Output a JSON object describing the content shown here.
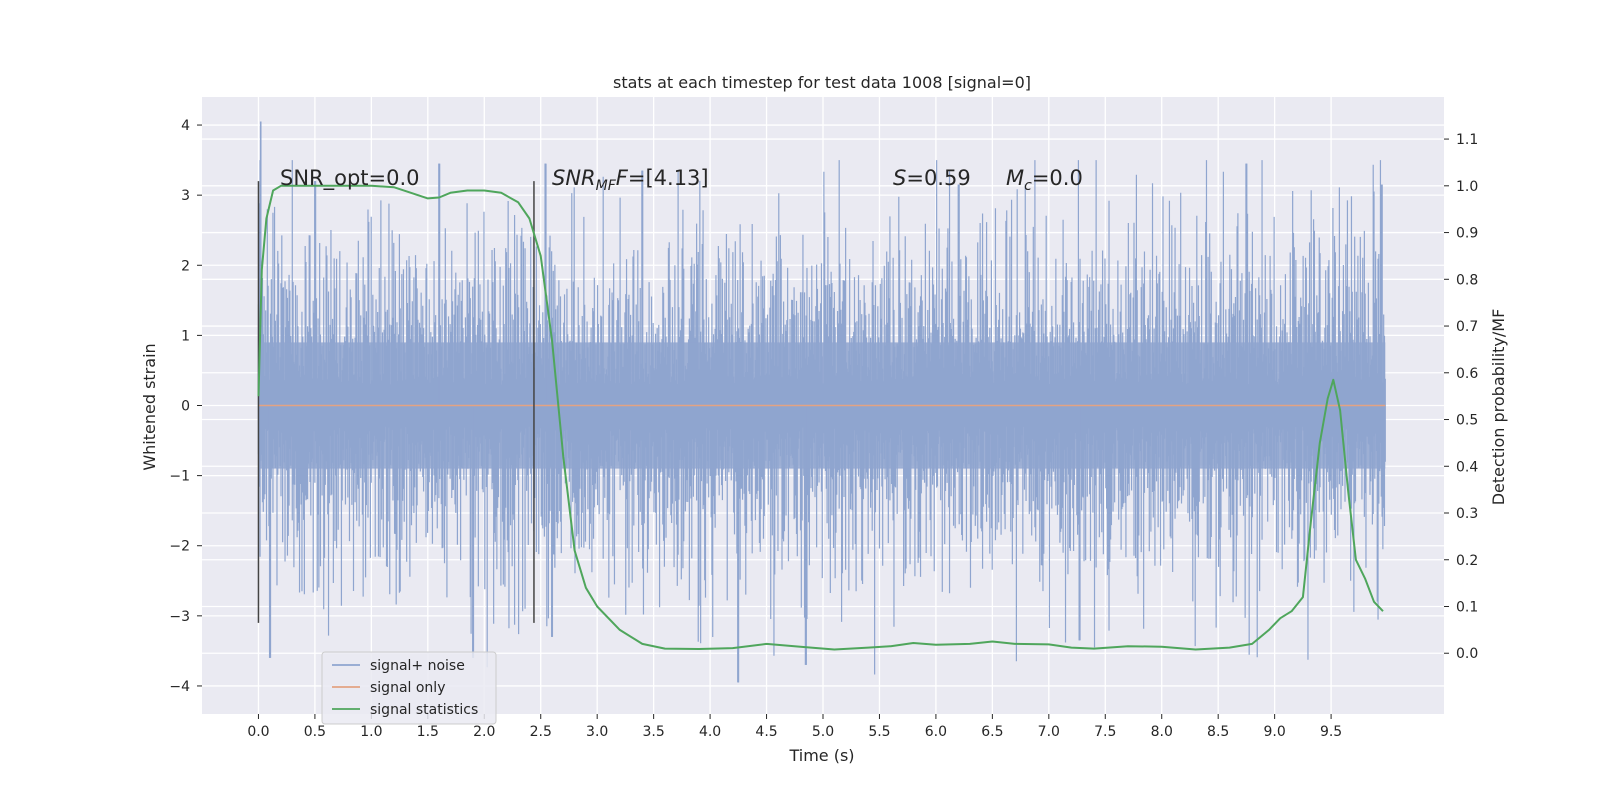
{
  "chart_data": {
    "type": "line",
    "title": "stats at each timestep for test data 1008 [signal=0]",
    "xlabel": "Time (s)",
    "ylabel_left": "Whitened strain",
    "ylabel_right": "Detection probability/MF",
    "xlim": [
      -0.5,
      10.5
    ],
    "ylim_left": [
      -4.4,
      4.4
    ],
    "ylim_right": [
      -0.13,
      1.19
    ],
    "x_ticks": [
      "0.0",
      "0.5",
      "1.0",
      "1.5",
      "2.0",
      "2.5",
      "3.0",
      "3.5",
      "4.0",
      "4.5",
      "5.0",
      "5.5",
      "6.0",
      "6.5",
      "7.0",
      "7.5",
      "8.0",
      "8.5",
      "9.0",
      "9.5"
    ],
    "y_ticks_left": [
      "4",
      "3",
      "2",
      "1",
      "0",
      "−1",
      "−2",
      "−3",
      "−4"
    ],
    "y_ticks_right": [
      "1.1",
      "1.0",
      "0.9",
      "0.8",
      "0.7",
      "0.6",
      "0.5",
      "0.4",
      "0.3",
      "0.2",
      "0.1",
      "0.0"
    ],
    "grid": true,
    "legend_position": "lower-left",
    "colors": {
      "noise": "#8fa5cf",
      "signal": "#e3a383",
      "stats": "#4fa65c",
      "vline": "#444444",
      "plot_bg": "#eaeaf2",
      "grid": "#ffffff"
    },
    "annotations": {
      "snr_opt": "SNR_opt=0.0",
      "snr_mf_name": "SNR",
      "snr_mf_sub": "MF",
      "snr_mf_value": "=[4.13]",
      "s_name": "S",
      "s_value": "=0.59",
      "mc_name": "M",
      "mc_sub": "c",
      "mc_value": "=0.0"
    },
    "vertical_lines": [
      {
        "x": 0.0,
        "y_range": [
          -3.1,
          3.2
        ]
      },
      {
        "x": 2.44,
        "y_range": [
          -3.1,
          3.2
        ]
      }
    ],
    "noise_series": {
      "name": "signal+ noise",
      "x_range": [
        0.0,
        9.98
      ],
      "typical_amplitude": 1.3,
      "peaks": [
        {
          "x": 0.02,
          "y": 4.05
        },
        {
          "x": 0.5,
          "y": 3.2
        },
        {
          "x": 1.6,
          "y": 3.45
        },
        {
          "x": 2.54,
          "y": 3.45
        },
        {
          "x": 3.4,
          "y": 3.35
        },
        {
          "x": 6.2,
          "y": 3.15
        },
        {
          "x": 8.75,
          "y": 3.45
        },
        {
          "x": 9.95,
          "y": 3.15
        },
        {
          "x": 0.1,
          "y": -3.6
        },
        {
          "x": 1.9,
          "y": -3.6
        },
        {
          "x": 4.25,
          "y": -3.95
        },
        {
          "x": 4.85,
          "y": -3.7
        },
        {
          "x": 7.27,
          "y": -3.35
        },
        {
          "x": 2.6,
          "y": -3.3
        }
      ]
    },
    "signal_series": {
      "name": "signal only",
      "x": [
        0.0,
        9.98
      ],
      "y": [
        0.0,
        0.0
      ]
    },
    "stats_series": {
      "name": "signal statistics",
      "x": [
        0.0,
        0.03,
        0.07,
        0.13,
        0.2,
        0.3,
        0.5,
        0.8,
        1.0,
        1.2,
        1.35,
        1.5,
        1.6,
        1.7,
        1.85,
        2.0,
        2.15,
        2.3,
        2.4,
        2.5,
        2.6,
        2.7,
        2.8,
        2.9,
        3.0,
        3.2,
        3.4,
        3.6,
        3.9,
        4.2,
        4.5,
        4.8,
        5.1,
        5.4,
        5.6,
        5.8,
        6.0,
        6.3,
        6.5,
        6.7,
        7.0,
        7.2,
        7.4,
        7.7,
        8.0,
        8.3,
        8.6,
        8.8,
        8.95,
        9.05,
        9.15,
        9.25,
        9.32,
        9.4,
        9.47,
        9.52,
        9.58,
        9.65,
        9.72,
        9.8,
        9.88,
        9.96
      ],
      "y": [
        0.55,
        0.82,
        0.93,
        0.99,
        1.0,
        1.0,
        1.0,
        1.0,
        1.0,
        0.997,
        0.985,
        0.973,
        0.975,
        0.985,
        0.99,
        0.99,
        0.985,
        0.965,
        0.93,
        0.85,
        0.67,
        0.42,
        0.22,
        0.14,
        0.1,
        0.05,
        0.02,
        0.01,
        0.009,
        0.011,
        0.02,
        0.014,
        0.008,
        0.012,
        0.015,
        0.022,
        0.018,
        0.02,
        0.025,
        0.02,
        0.019,
        0.012,
        0.01,
        0.015,
        0.014,
        0.008,
        0.012,
        0.02,
        0.05,
        0.075,
        0.09,
        0.12,
        0.28,
        0.45,
        0.545,
        0.585,
        0.52,
        0.35,
        0.2,
        0.16,
        0.11,
        0.09
      ]
    }
  }
}
